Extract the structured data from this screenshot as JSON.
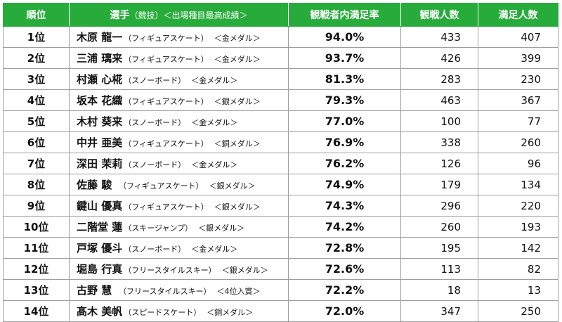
{
  "headers": {
    "rank": "順位",
    "athlete": "選手",
    "athlete_sub": "（競技）＜出場種目最高成績＞",
    "rate": "観戦者内満足率",
    "viewers": "観戦人数",
    "satisfied": "満足人数"
  },
  "rows": [
    {
      "rank": "1位",
      "name": "木原 龍一",
      "event": "（フィギュアスケート）",
      "result": "＜金メダル＞",
      "rate": "94.0%",
      "viewers": "433",
      "satisfied": "407"
    },
    {
      "rank": "2位",
      "name": "三浦 璃来",
      "event": "（フィギュアスケート）",
      "result": "＜金メダル＞",
      "rate": "93.7%",
      "viewers": "426",
      "satisfied": "399"
    },
    {
      "rank": "3位",
      "name": "村瀬 心椛",
      "event": "（スノーボード）",
      "result": "＜金メダル＞",
      "rate": "81.3%",
      "viewers": "283",
      "satisfied": "230"
    },
    {
      "rank": "4位",
      "name": "坂本 花織",
      "event": "（フィギュアスケート）",
      "result": "＜銀メダル＞",
      "rate": "79.3%",
      "viewers": "463",
      "satisfied": "367"
    },
    {
      "rank": "5位",
      "name": "木村 葵来",
      "event": "（スノーボード）",
      "result": "＜金メダル＞",
      "rate": "77.0%",
      "viewers": "100",
      "satisfied": "77"
    },
    {
      "rank": "6位",
      "name": "中井 亜美",
      "event": "（フィギュアスケート）",
      "result": "＜銅メダル＞",
      "rate": "76.9%",
      "viewers": "338",
      "satisfied": "260"
    },
    {
      "rank": "7位",
      "name": "深田 茉莉",
      "event": "（スノーボード）",
      "result": "＜金メダル＞",
      "rate": "76.2%",
      "viewers": "126",
      "satisfied": "96"
    },
    {
      "rank": "8位",
      "name": "佐藤 駿",
      "event": "（フィギュアスケート）",
      "result": "＜銀メダル＞",
      "rate": "74.9%",
      "viewers": "179",
      "satisfied": "134"
    },
    {
      "rank": "9位",
      "name": "鍵山 優真",
      "event": "（フィギュアスケート）",
      "result": "＜銀メダル＞",
      "rate": "74.3%",
      "viewers": "296",
      "satisfied": "220"
    },
    {
      "rank": "10位",
      "name": "二階堂 蓮",
      "event": "（スキージャンプ）",
      "result": "＜銀メダル＞",
      "rate": "74.2%",
      "viewers": "260",
      "satisfied": "193"
    },
    {
      "rank": "11位",
      "name": "戸塚 優斗",
      "event": "（スノーボード）",
      "result": "＜金メダル＞",
      "rate": "72.8%",
      "viewers": "195",
      "satisfied": "142"
    },
    {
      "rank": "12位",
      "name": "堀島 行真",
      "event": "（フリースタイルスキー）",
      "result": "＜銀メダル＞",
      "rate": "72.6%",
      "viewers": "113",
      "satisfied": "82"
    },
    {
      "rank": "13位",
      "name": "古野 慧",
      "event": "（フリースタイルスキー）",
      "result": "＜4位入賞＞",
      "rate": "72.2%",
      "viewers": "18",
      "satisfied": "13"
    },
    {
      "rank": "14位",
      "name": "髙木 美帆",
      "event": "（スピードスケート）",
      "result": "＜銅メダル＞",
      "rate": "72.0%",
      "viewers": "347",
      "satisfied": "250"
    }
  ]
}
